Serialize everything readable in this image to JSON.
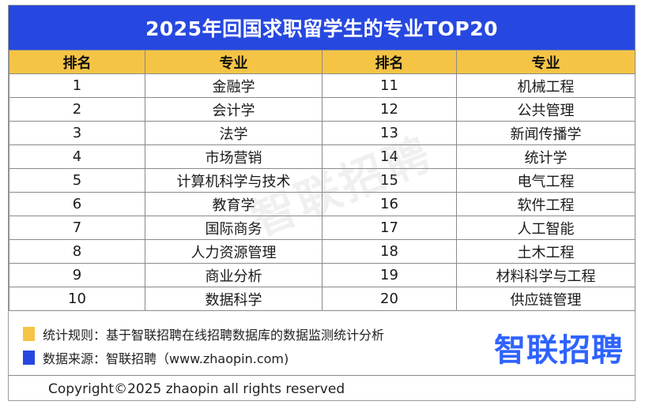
{
  "title": "2025年回国求职留学生的专业TOP20",
  "headers": [
    "排名",
    "专业",
    "排名",
    "专业"
  ],
  "rows": [
    {
      "rank_left": "1",
      "major_left": "金融学",
      "rank_right": "11",
      "major_right": "机械工程"
    },
    {
      "rank_left": "2",
      "major_left": "会计学",
      "rank_right": "12",
      "major_right": "公共管理"
    },
    {
      "rank_left": "3",
      "major_left": "法学",
      "rank_right": "13",
      "major_right": "新闻传播学"
    },
    {
      "rank_left": "4",
      "major_left": "市场营销",
      "rank_right": "14",
      "major_right": "统计学"
    },
    {
      "rank_left": "5",
      "major_left": "计算机科学与技术",
      "rank_right": "15",
      "major_right": "电气工程"
    },
    {
      "rank_left": "6",
      "major_left": "教育学",
      "rank_right": "16",
      "major_right": "软件工程"
    },
    {
      "rank_left": "7",
      "major_left": "国际商务",
      "rank_right": "17",
      "major_right": "人工智能"
    },
    {
      "rank_left": "8",
      "major_left": "人力资源管理",
      "rank_right": "18",
      "major_right": "土木工程"
    },
    {
      "rank_left": "9",
      "major_left": "商业分析",
      "rank_right": "19",
      "major_right": "材料科学与工程"
    },
    {
      "rank_left": "10",
      "major_left": "数据科学",
      "rank_right": "20",
      "major_right": "供应链管理"
    }
  ],
  "watermark": "智联招聘",
  "legend": [
    {
      "text": "统计规则：基于智联招聘在线招聘数据库的数据监测统计分析",
      "color": "#f6c445"
    },
    {
      "text": "数据来源：智联招聘（www.zhaopin.com)",
      "color": "#2748e0"
    }
  ],
  "logo_text": "智联招聘",
  "copyright": "Copyright©2025 zhaopin all rights reserved",
  "colors": {
    "title_bar": "#2748e0",
    "header_fill": "#f6c445",
    "logo": "#2f63ff"
  }
}
